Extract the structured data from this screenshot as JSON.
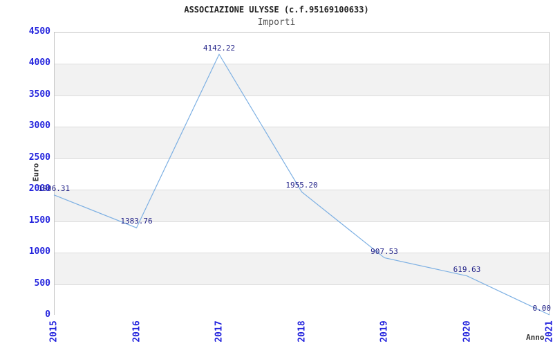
{
  "chart_data": {
    "type": "line",
    "title": "ASSOCIAZIONE ULYSSE (c.f.95169100633)",
    "subtitle": "Importi",
    "xlabel": "Anno",
    "ylabel": "Euro",
    "categories": [
      "2015",
      "2016",
      "2017",
      "2018",
      "2019",
      "2020",
      "2021"
    ],
    "series": [
      {
        "name": "Importi",
        "values": [
          1906.31,
          1383.76,
          4142.22,
          1955.2,
          907.53,
          619.63,
          0.0
        ]
      }
    ],
    "point_labels": [
      "1906.31",
      "1383.76",
      "4142.22",
      "1955.20",
      "907.53",
      "619.63",
      "0.00"
    ],
    "ylim": [
      0,
      4500
    ],
    "ytick_step": 500,
    "grid": "horizontal gridlines with alternating gray bands",
    "legend": "none",
    "colors": {
      "line": "#7db0e3",
      "tick_label": "#2222dd",
      "data_label": "#222288",
      "band": "#f2f2f2",
      "gridline": "#dcdcdc",
      "border": "#c4c4c4",
      "title": "#222222",
      "subtitle": "#555555",
      "axis_title": "#333333"
    }
  }
}
